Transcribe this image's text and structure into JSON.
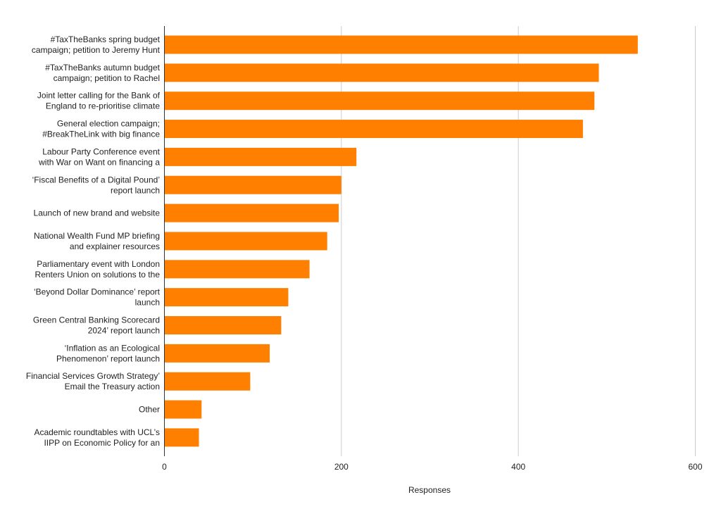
{
  "chart_data": {
    "type": "bar",
    "orientation": "horizontal",
    "xlabel": "Responses",
    "ylabel": "",
    "xlim": [
      0,
      600
    ],
    "x_ticks": [
      0,
      200,
      400,
      600
    ],
    "grid": true,
    "bar_color": "#ff7f00",
    "categories": [
      [
        "#TaxTheBanks spring budget",
        "campaign; petition to Jeremy Hunt"
      ],
      [
        "#TaxTheBanks autumn budget",
        "campaign; petition to Rachel"
      ],
      [
        "Joint letter calling for the Bank of",
        "England to re-prioritise climate"
      ],
      [
        "General election campaign;",
        "#BreakTheLink with big finance"
      ],
      [
        "Labour Party Conference event",
        "with War on Want on financing a"
      ],
      [
        "‘Fiscal Benefits of a Digital Pound’",
        "report launch"
      ],
      [
        "Launch of new brand and website"
      ],
      [
        "National Wealth Fund MP briefing",
        "and explainer resources"
      ],
      [
        "Parliamentary event with London",
        "Renters Union on solutions to the"
      ],
      [
        "‘Beyond Dollar Dominance’ report",
        "launch"
      ],
      [
        "Green Central Banking Scorecard",
        "2024’ report launch"
      ],
      [
        "‘Inflation as an Ecological",
        "Phenomenon’ report launch"
      ],
      [
        "Financial Services Growth Strategy’",
        "Email the Treasury action"
      ],
      [
        "Other"
      ],
      [
        "Academic roundtables with UCL’s",
        "IIPP on Economic Policy for an"
      ]
    ],
    "values": [
      535,
      491,
      486,
      473,
      217,
      200,
      197,
      184,
      164,
      140,
      132,
      119,
      97,
      42,
      39
    ]
  }
}
